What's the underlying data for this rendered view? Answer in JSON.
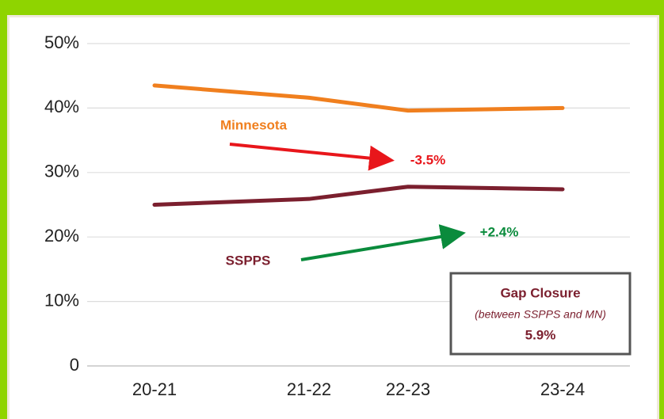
{
  "chart_data": {
    "type": "line",
    "categories": [
      "20-21",
      "21-22",
      "22-23",
      "23-24"
    ],
    "series": [
      {
        "name": "Minnesota",
        "color": "#f07f1e",
        "values": [
          43.5,
          41.6,
          39.6,
          40.0
        ]
      },
      {
        "name": "SSPPS",
        "color": "#7b1f2e",
        "values": [
          25.0,
          25.9,
          27.8,
          27.4
        ]
      }
    ],
    "ylim": [
      0,
      50
    ],
    "yticks": [
      0,
      {
        "value": 10,
        "label": "10%"
      },
      {
        "value": 20,
        "label": "20%"
      },
      {
        "value": 30,
        "label": "30%"
      },
      {
        "value": 40,
        "label": "40%"
      },
      {
        "value": 50,
        "label": "50%"
      }
    ],
    "grid": true,
    "annotations": {
      "minnesota_change": "-3.5%",
      "sspps_change": "+2.4%",
      "box_title": "Gap Closure",
      "box_subtitle": "(between SSPPS and MN)",
      "box_value": "5.9%"
    }
  }
}
